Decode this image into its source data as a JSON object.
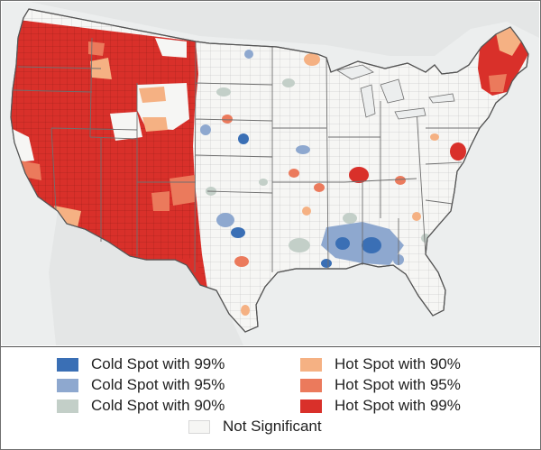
{
  "map": {
    "region": "Contiguous United States",
    "unit": "counties",
    "background_color": "#eceeee",
    "land_color": "#f6f6f4",
    "boundary_color": "#8a8a8a"
  },
  "legend": {
    "items": [
      {
        "key": "cold99",
        "label": "Cold Spot with 99%",
        "color": "#3a6fb5"
      },
      {
        "key": "cold95",
        "label": "Cold Spot with 95%",
        "color": "#8ea8cf"
      },
      {
        "key": "cold90",
        "label": "Cold Spot with 90%",
        "color": "#c3cfc8"
      },
      {
        "key": "hot90",
        "label": "Hot Spot with 90%",
        "color": "#f5b183"
      },
      {
        "key": "hot95",
        "label": "Hot Spot with 95%",
        "color": "#eb7a5c"
      },
      {
        "key": "hot99",
        "label": "Hot Spot with 99%",
        "color": "#d9302a"
      },
      {
        "key": "ns",
        "label": "Not Significant",
        "color": "#f6f6f4"
      }
    ]
  }
}
